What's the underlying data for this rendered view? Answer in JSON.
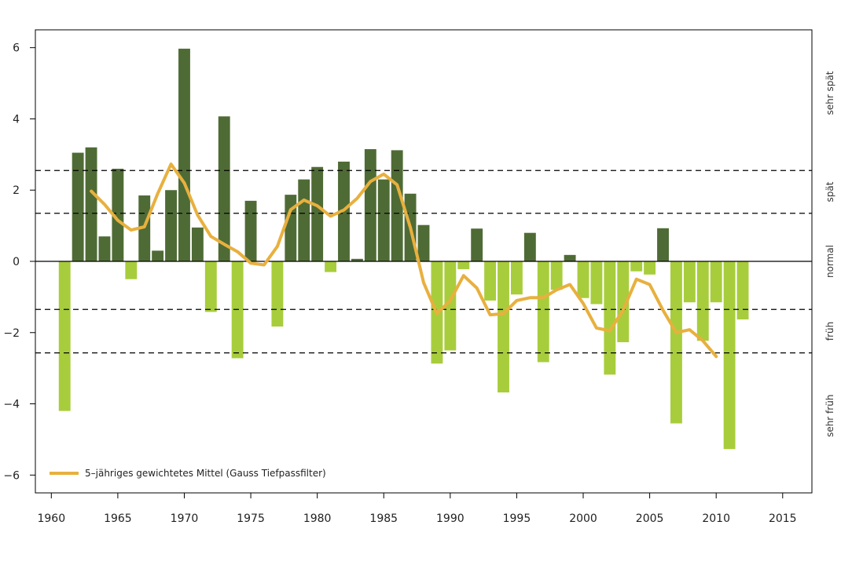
{
  "chart_data": {
    "type": "bar",
    "x": [
      1961,
      1962,
      1963,
      1964,
      1965,
      1966,
      1967,
      1968,
      1969,
      1970,
      1971,
      1972,
      1973,
      1974,
      1975,
      1976,
      1977,
      1978,
      1979,
      1980,
      1981,
      1982,
      1983,
      1984,
      1985,
      1986,
      1987,
      1988,
      1989,
      1990,
      1991,
      1992,
      1993,
      1994,
      1995,
      1996,
      1997,
      1998,
      1999,
      2000,
      2001,
      2002,
      2003,
      2004,
      2005,
      2006,
      2007,
      2008,
      2009,
      2010,
      2011,
      2012
    ],
    "values": [
      -4.2,
      3.05,
      3.2,
      0.7,
      2.6,
      -0.5,
      1.85,
      0.3,
      2.0,
      5.97,
      0.95,
      -1.42,
      4.07,
      -2.72,
      1.7,
      0.0,
      -1.83,
      1.87,
      2.3,
      2.65,
      -0.3,
      2.8,
      0.07,
      3.15,
      2.3,
      3.12,
      1.9,
      1.02,
      -2.87,
      -2.5,
      -0.22,
      0.92,
      -1.1,
      -3.68,
      -0.93,
      0.8,
      -2.83,
      -0.8,
      0.18,
      -1.03,
      -1.2,
      -3.18,
      -2.27,
      -0.28,
      -0.37,
      0.93,
      -4.55,
      -1.15,
      -2.23,
      -1.15,
      -5.27,
      -1.63
    ],
    "series": [
      {
        "name": "5–jähriges gewichtetes Mittel (Gauss Tiefpassfilter)",
        "x": [
          1963,
          1964,
          1965,
          1966,
          1967,
          1968,
          1969,
          1970,
          1971,
          1972,
          1973,
          1974,
          1975,
          1976,
          1977,
          1978,
          1979,
          1980,
          1981,
          1982,
          1983,
          1984,
          1985,
          1986,
          1987,
          1988,
          1989,
          1990,
          1991,
          1992,
          1993,
          1994,
          1995,
          1996,
          1997,
          1998,
          1999,
          2000,
          2001,
          2002,
          2003,
          2004,
          2005,
          2006,
          2007,
          2008,
          2009,
          2010
        ],
        "values": [
          1.97,
          1.6,
          1.15,
          0.88,
          0.97,
          1.9,
          2.73,
          2.2,
          1.3,
          0.7,
          0.48,
          0.27,
          -0.05,
          -0.1,
          0.42,
          1.45,
          1.72,
          1.56,
          1.27,
          1.44,
          1.77,
          2.24,
          2.45,
          2.15,
          0.95,
          -0.6,
          -1.47,
          -1.1,
          -0.4,
          -0.75,
          -1.5,
          -1.47,
          -1.1,
          -1.02,
          -1.02,
          -0.8,
          -0.65,
          -1.18,
          -1.87,
          -1.95,
          -1.37,
          -0.5,
          -0.65,
          -1.37,
          -2.0,
          -1.92,
          -2.23,
          -2.67
        ],
        "color": "#e8b03e"
      }
    ],
    "thresholds": [
      2.55,
      1.35,
      -1.35,
      -2.57
    ],
    "categories": [
      "sehr spät",
      "spät",
      "normal",
      "früh",
      "sehr früh"
    ],
    "xlim": [
      1958.8,
      2017.2
    ],
    "ylim": [
      -6.5,
      6.5
    ],
    "xticks": [
      1960,
      1965,
      1970,
      1975,
      1980,
      1985,
      1990,
      1995,
      2000,
      2005,
      2010,
      2015
    ],
    "yticks": [
      6,
      4,
      2,
      0,
      -2,
      -4,
      -6
    ],
    "ytick_labels": [
      "6",
      "4",
      "2",
      "0",
      "−2",
      "−4",
      "−6"
    ],
    "legend_position": "bottom-left",
    "colors": {
      "positive": "#4f6b35",
      "negative": "#a8cd3c",
      "smooth": "#e8b03e"
    }
  }
}
